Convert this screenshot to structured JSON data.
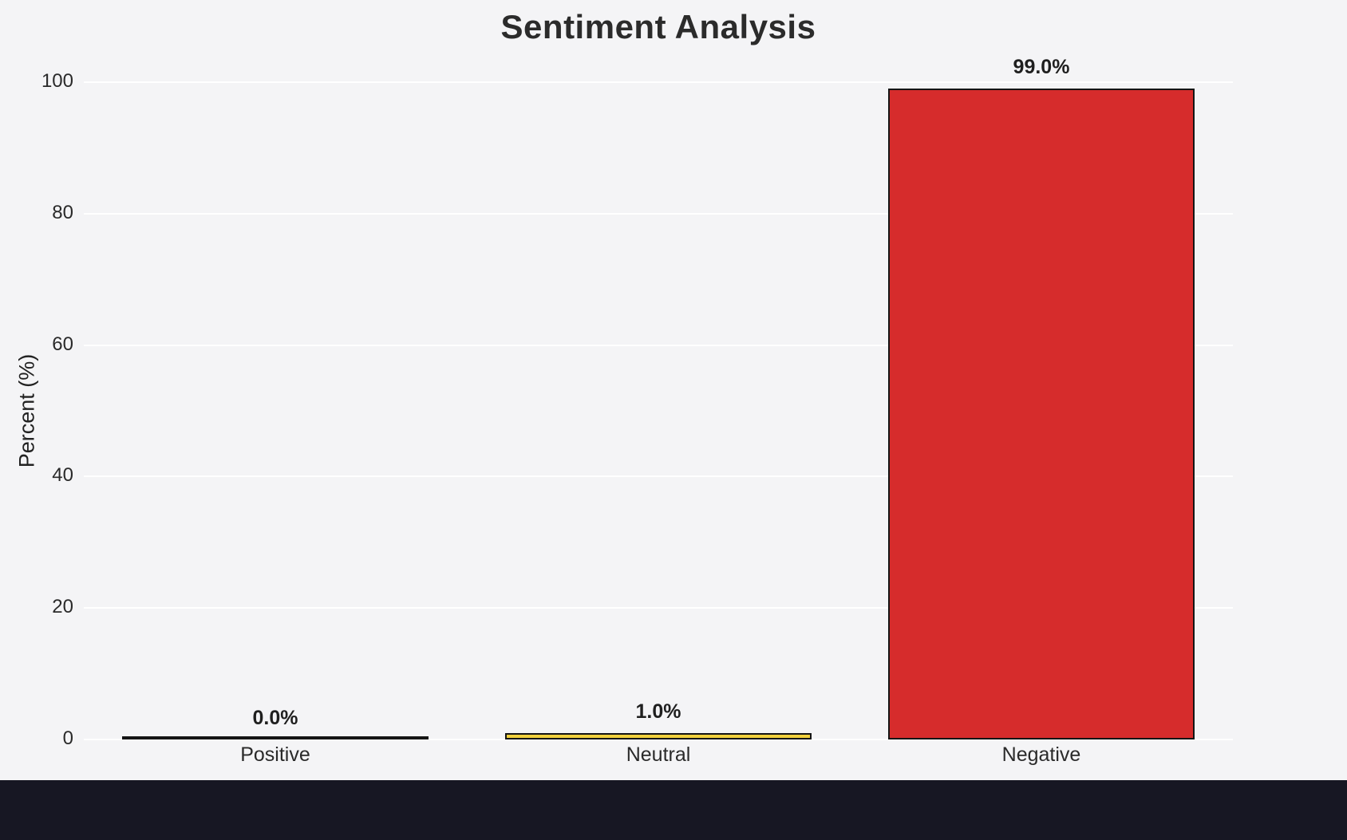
{
  "chart_data": {
    "type": "bar",
    "title": "Sentiment Analysis",
    "ylabel": "Percent (%)",
    "xlabel": "",
    "categories": [
      "Positive",
      "Neutral",
      "Negative"
    ],
    "values": [
      0.0,
      1.0,
      99.0
    ],
    "value_labels": [
      "0.0%",
      "1.0%",
      "99.0%"
    ],
    "yticks": [
      0,
      20,
      40,
      60,
      80,
      100
    ],
    "ylim": [
      0,
      100
    ],
    "grid": "horizontal",
    "legend": "none",
    "bar_colors": [
      "#2ca02c",
      "#f2d13d",
      "#d62c2c"
    ],
    "bar_edge_color": "#151515",
    "background_color": "#f4f4f6",
    "gridline_color": "#ffffff"
  },
  "footer": {
    "color": "#171723"
  }
}
